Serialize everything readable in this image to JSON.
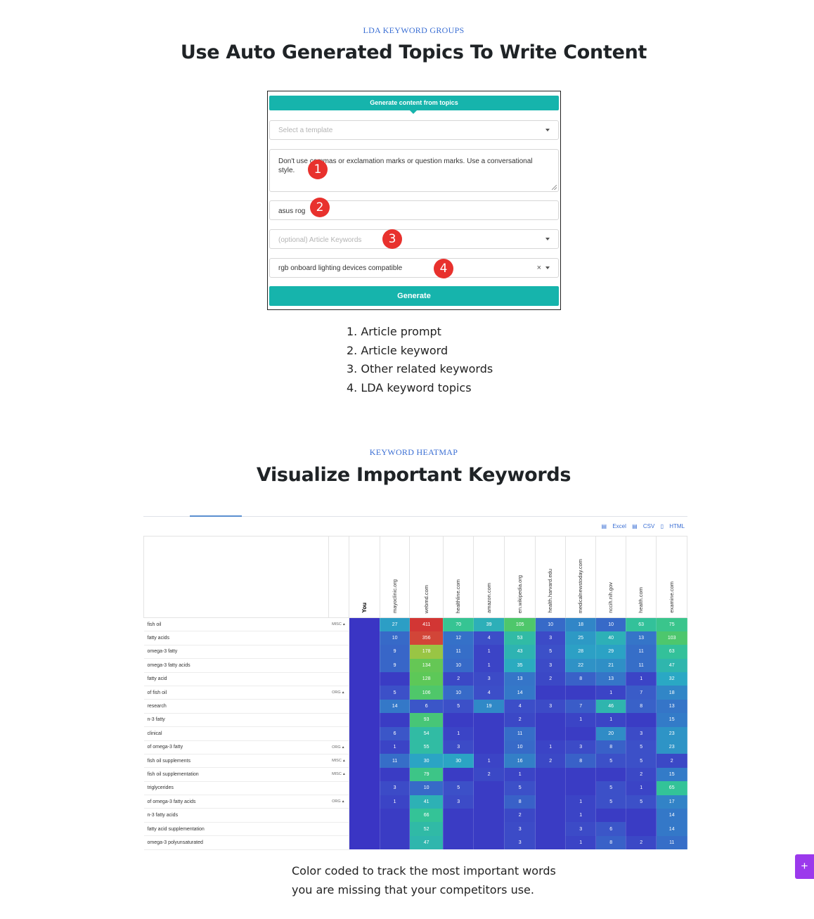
{
  "section1": {
    "kicker": "LDA KEYWORD GROUPS",
    "title": "Use Auto Generated Topics To Write Content"
  },
  "form": {
    "tab_label": "Generate content from topics",
    "template_placeholder": "Select a template",
    "prompt_text": "Don't use commas or exclamation marks or question marks. Use a conversational style.",
    "keyword_value": "asus rog",
    "article_keywords_placeholder": "(optional) Article Keywords",
    "topic_value": "rgb onboard lighting devices compatible",
    "clear_symbol": "×",
    "generate_label": "Generate",
    "badges": [
      "1",
      "2",
      "3",
      "4"
    ]
  },
  "legend": [
    "1. Article prompt",
    "2. Article keyword",
    "3. Other related keywords",
    "4. LDA keyword topics"
  ],
  "section2": {
    "kicker": "KEYWORD HEATMAP",
    "title": "Visualize Important Keywords"
  },
  "exports": [
    "Excel",
    "CSV",
    "HTML"
  ],
  "heatmap": {
    "you_label": "You",
    "columns": [
      "mayoclinic.org",
      "webmd.com",
      "healthline.com",
      "amazon.com",
      "en.wikipedia.org",
      "health.harvard.edu",
      "medicalnewstoday.com",
      "nccih.nih.gov",
      "health.com",
      "examine.com"
    ],
    "rows": [
      {
        "keyword": "fish oil",
        "tag": "MISC",
        "values": [
          27,
          411,
          70,
          39,
          105,
          10,
          18,
          10,
          63,
          75
        ]
      },
      {
        "keyword": "fatty acids",
        "tag": "",
        "values": [
          10,
          356,
          12,
          4,
          53,
          3,
          25,
          40,
          13,
          103
        ]
      },
      {
        "keyword": "omega-3 fatty",
        "tag": "",
        "values": [
          9,
          178,
          11,
          1,
          43,
          5,
          28,
          29,
          11,
          63
        ]
      },
      {
        "keyword": "omega-3 fatty acids",
        "tag": "",
        "values": [
          9,
          134,
          10,
          1,
          35,
          3,
          22,
          21,
          11,
          47
        ]
      },
      {
        "keyword": "fatty acid",
        "tag": "",
        "values": [
          null,
          128,
          2,
          3,
          13,
          2,
          8,
          13,
          1,
          32
        ]
      },
      {
        "keyword": "of fish oil",
        "tag": "ORG",
        "values": [
          5,
          106,
          10,
          4,
          14,
          null,
          null,
          1,
          7,
          18
        ]
      },
      {
        "keyword": "research",
        "tag": "",
        "values": [
          14,
          6,
          5,
          19,
          4,
          3,
          7,
          46,
          8,
          13
        ]
      },
      {
        "keyword": "n-3 fatty",
        "tag": "",
        "values": [
          null,
          93,
          null,
          null,
          2,
          null,
          1,
          1,
          null,
          15
        ]
      },
      {
        "keyword": "clinical",
        "tag": "",
        "values": [
          6,
          54,
          1,
          null,
          11,
          null,
          null,
          20,
          3,
          23
        ]
      },
      {
        "keyword": "of omega-3 fatty",
        "tag": "ORG",
        "values": [
          1,
          55,
          3,
          null,
          10,
          1,
          3,
          8,
          5,
          23
        ]
      },
      {
        "keyword": "fish oil supplements",
        "tag": "MISC",
        "values": [
          11,
          30,
          30,
          1,
          16,
          2,
          8,
          5,
          5,
          2
        ]
      },
      {
        "keyword": "fish oil supplementation",
        "tag": "MISC",
        "values": [
          null,
          79,
          null,
          2,
          1,
          null,
          null,
          null,
          2,
          15
        ]
      },
      {
        "keyword": "triglycerides",
        "tag": "",
        "values": [
          3,
          10,
          5,
          null,
          5,
          null,
          null,
          5,
          1,
          65
        ]
      },
      {
        "keyword": "of omega-3 fatty acids",
        "tag": "ORG",
        "values": [
          1,
          41,
          3,
          null,
          8,
          null,
          1,
          5,
          5,
          17
        ]
      },
      {
        "keyword": "n-3 fatty acids",
        "tag": "",
        "values": [
          null,
          66,
          null,
          null,
          2,
          null,
          1,
          null,
          null,
          14
        ]
      },
      {
        "keyword": "fatty acid supplementation",
        "tag": "",
        "values": [
          null,
          52,
          null,
          null,
          3,
          null,
          3,
          6,
          null,
          14
        ]
      },
      {
        "keyword": "omega-3 polyunsaturated",
        "tag": "",
        "values": [
          null,
          47,
          null,
          null,
          3,
          null,
          1,
          8,
          2,
          11
        ]
      }
    ]
  },
  "caption": [
    "Color coded to track the most important words",
    "you are missing that your competitors use."
  ],
  "fab_symbol": "+"
}
